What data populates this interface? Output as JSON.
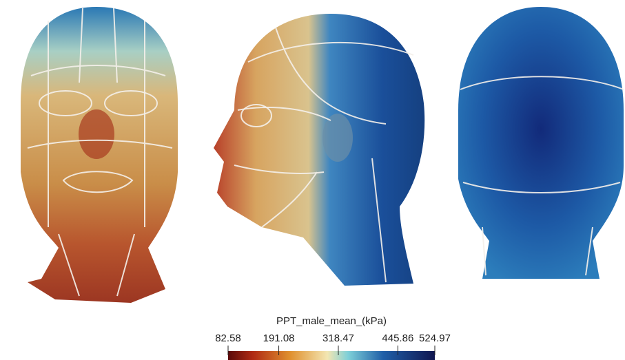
{
  "colorbar": {
    "title": "PPT_male_mean_(kPa)",
    "lim": [
      82.58,
      524.97
    ],
    "ticks": [
      82.58,
      191.08,
      318.47,
      445.86,
      524.97
    ]
  }
}
